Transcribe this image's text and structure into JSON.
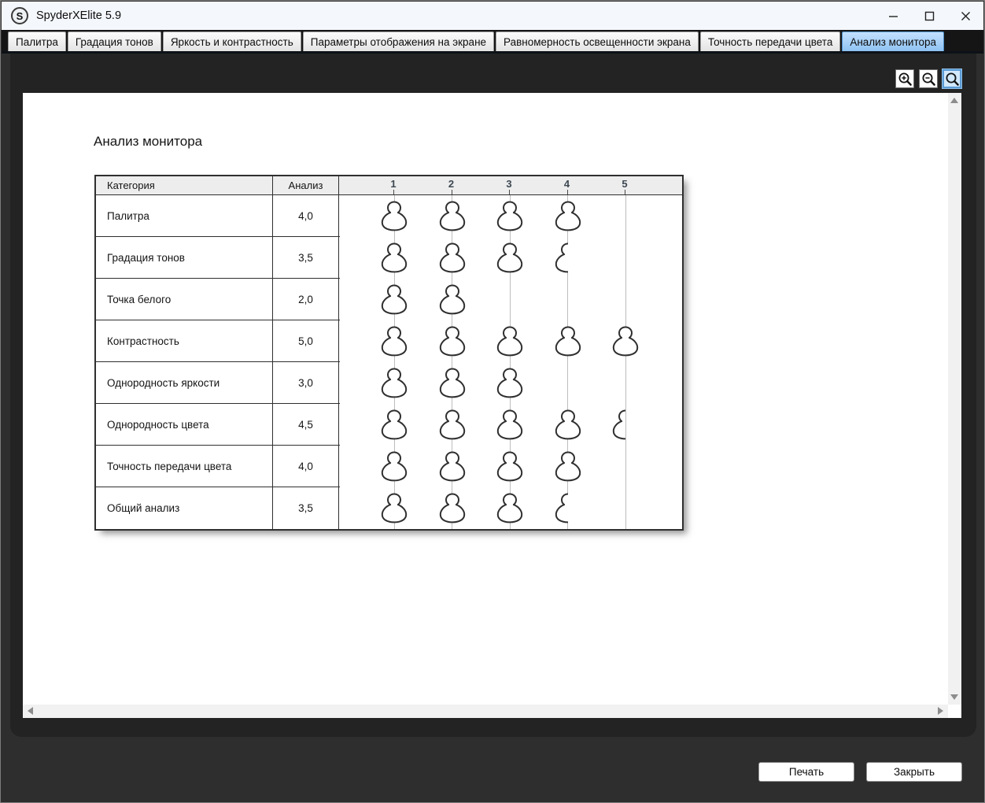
{
  "window": {
    "title": "SpyderXElite 5.9",
    "app_icon_letter": "S",
    "controls": [
      {
        "name": "minimize"
      },
      {
        "name": "maximize"
      },
      {
        "name": "close"
      }
    ]
  },
  "tabs": [
    {
      "name": "palette",
      "label": "Палитра",
      "active": false
    },
    {
      "name": "tone-response",
      "label": "Градация тонов",
      "active": false
    },
    {
      "name": "brightness-contrast",
      "label": "Яркость и контрастность",
      "active": false
    },
    {
      "name": "display-settings",
      "label": "Параметры отображения на экране",
      "active": false
    },
    {
      "name": "screen-uniformity",
      "label": "Равномерность освещенности экрана",
      "active": false
    },
    {
      "name": "color-accuracy",
      "label": "Точность передачи цвета",
      "active": false
    },
    {
      "name": "monitor-analysis",
      "label": "Анализ монитора",
      "active": true
    }
  ],
  "toolbar": {
    "buttons": [
      {
        "name": "zoom-in",
        "active": false
      },
      {
        "name": "zoom-out",
        "active": false
      },
      {
        "name": "zoom-select",
        "active": true
      }
    ]
  },
  "page": {
    "title": "Анализ монитора",
    "table": {
      "col_category": "Категория",
      "col_analysis": "Анализ",
      "scale": [
        "1",
        "2",
        "3",
        "4",
        "5"
      ],
      "rows": [
        {
          "category": "Палитра",
          "value": "4,0",
          "score": 4.0
        },
        {
          "category": "Градация тонов",
          "value": "3,5",
          "score": 3.5
        },
        {
          "category": "Точка белого",
          "value": "2,0",
          "score": 2.0
        },
        {
          "category": "Контрастность",
          "value": "5,0",
          "score": 5.0
        },
        {
          "category": "Однородность яркости",
          "value": "3,0",
          "score": 3.0
        },
        {
          "category": "Однородность цвета",
          "value": "4,5",
          "score": 4.5
        },
        {
          "category": "Точность передачи цвета",
          "value": "4,0",
          "score": 4.0
        },
        {
          "category": "Общий анализ",
          "value": "3,5",
          "score": 3.5
        }
      ]
    }
  },
  "footer": {
    "print_label": "Печать",
    "close_label": "Закрыть"
  },
  "colors": {
    "active_tab": "#8ec2f2",
    "titlebar_bg": "#f4f7fb",
    "panel_bg": "#232323",
    "window_bg": "#2e2e2e",
    "table_header_bg": "#ededed",
    "gridline": "#bdbdbd",
    "shape_stroke": "#2f2f2f",
    "scale_number": "#3d4852"
  }
}
